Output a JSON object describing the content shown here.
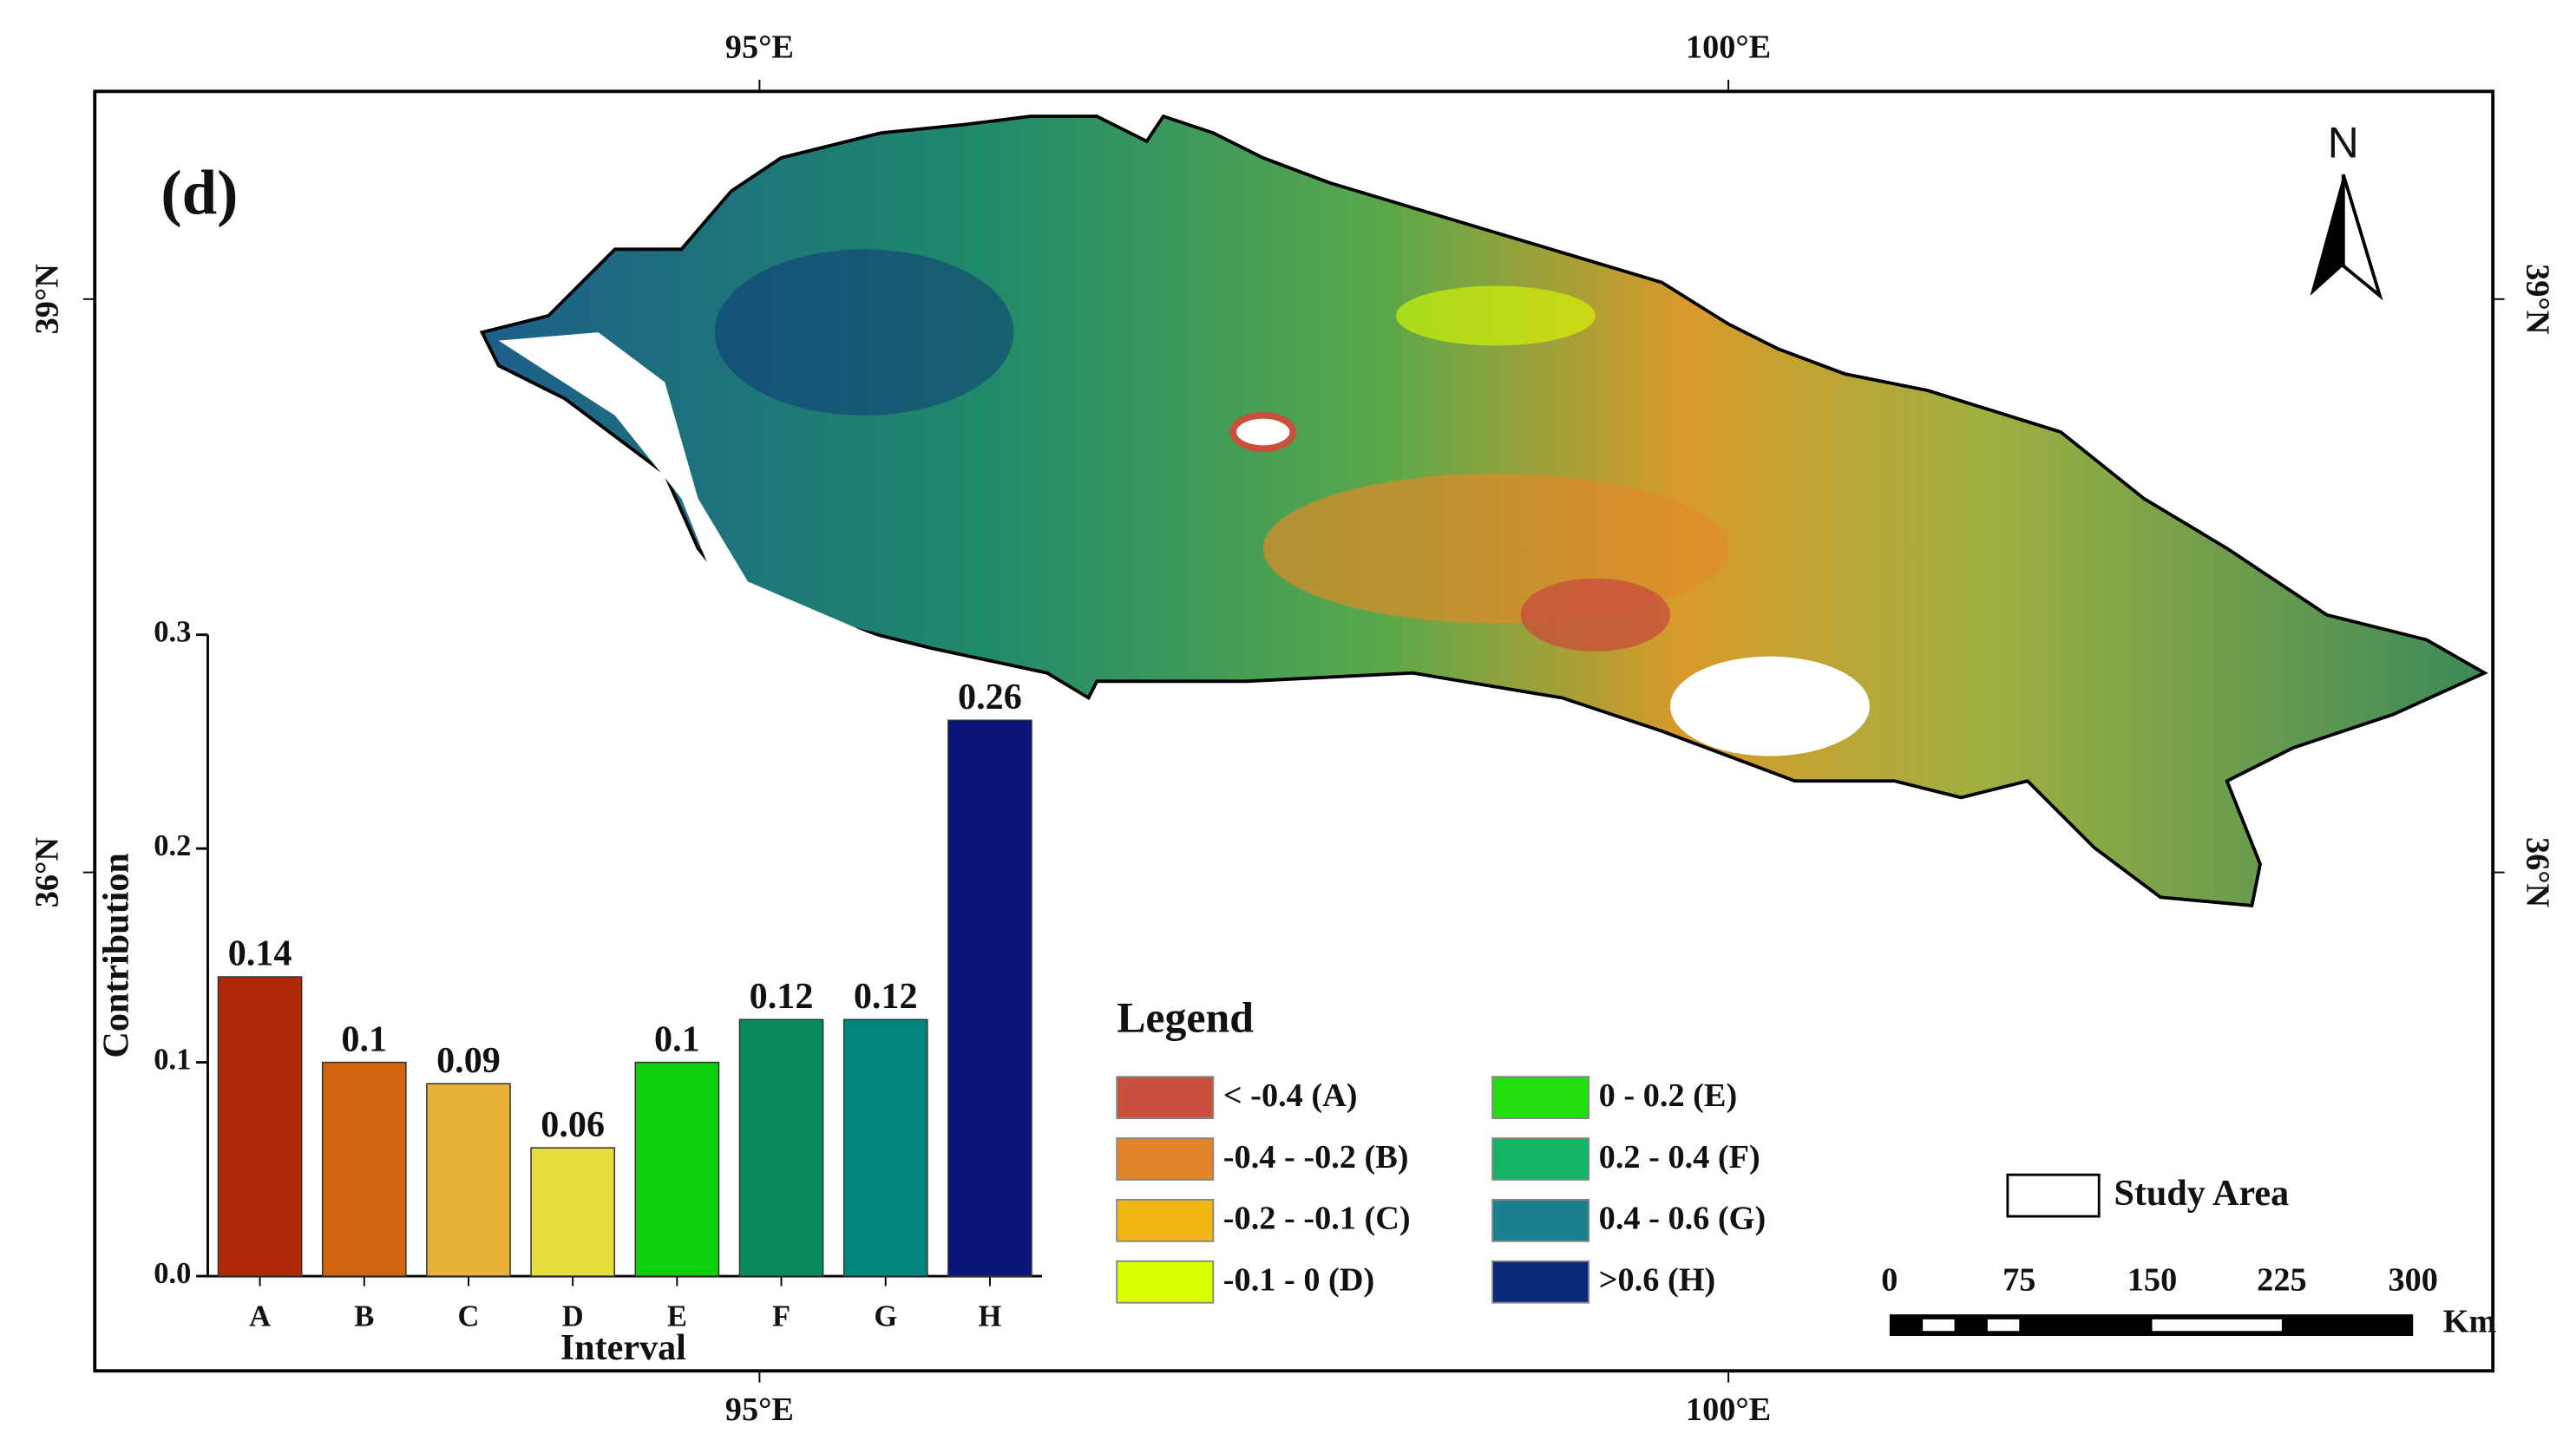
{
  "map": {
    "panel_label": "(d)",
    "north": "N",
    "lon_labels": [
      "95°E",
      "100°E"
    ],
    "lat_labels": [
      "39°N",
      "36°N"
    ],
    "legend": {
      "title": "Legend",
      "items": [
        {
          "label": "< -0.4 (A)",
          "color": "#c8503c"
        },
        {
          "label": "-0.4 - -0.2 (B)",
          "color": "#e0852a"
        },
        {
          "label": "-0.2 - -0.1 (C)",
          "color": "#f0b810"
        },
        {
          "label": "-0.1 - 0 (D)",
          "color": "#dcff00"
        },
        {
          "label": "0 - 0.2 (E)",
          "color": "#22dd10"
        },
        {
          "label": "0.2 - 0.4 (F)",
          "color": "#14b464"
        },
        {
          "label": "0.4 - 0.6 (G)",
          "color": "#1a8090"
        },
        {
          "label": ">0.6 (H)",
          "color": "#0a2a78"
        }
      ]
    },
    "study_area": "Study Area",
    "scale_bar": {
      "labels": [
        "0",
        "75",
        "150",
        "225",
        "300"
      ],
      "unit": "Km"
    }
  },
  "chart_data": {
    "type": "bar",
    "x_label": "Interval",
    "y_label": "Contribution",
    "categories": [
      "A",
      "B",
      "C",
      "D",
      "E",
      "F",
      "G",
      "H"
    ],
    "values": [
      0.14,
      0.1,
      0.09,
      0.06,
      0.1,
      0.12,
      0.12,
      0.26
    ],
    "colors": [
      "#b02a0a",
      "#d2650f",
      "#e8b13a",
      "#e6dd3d",
      "#0ecf0e",
      "#0a8c5a",
      "#00857f",
      "#0a1478"
    ],
    "ylim": [
      0,
      0.3
    ],
    "yticks": [
      {
        "value": 0,
        "label": "0.0"
      },
      0.1,
      0.2,
      0.3
    ]
  }
}
